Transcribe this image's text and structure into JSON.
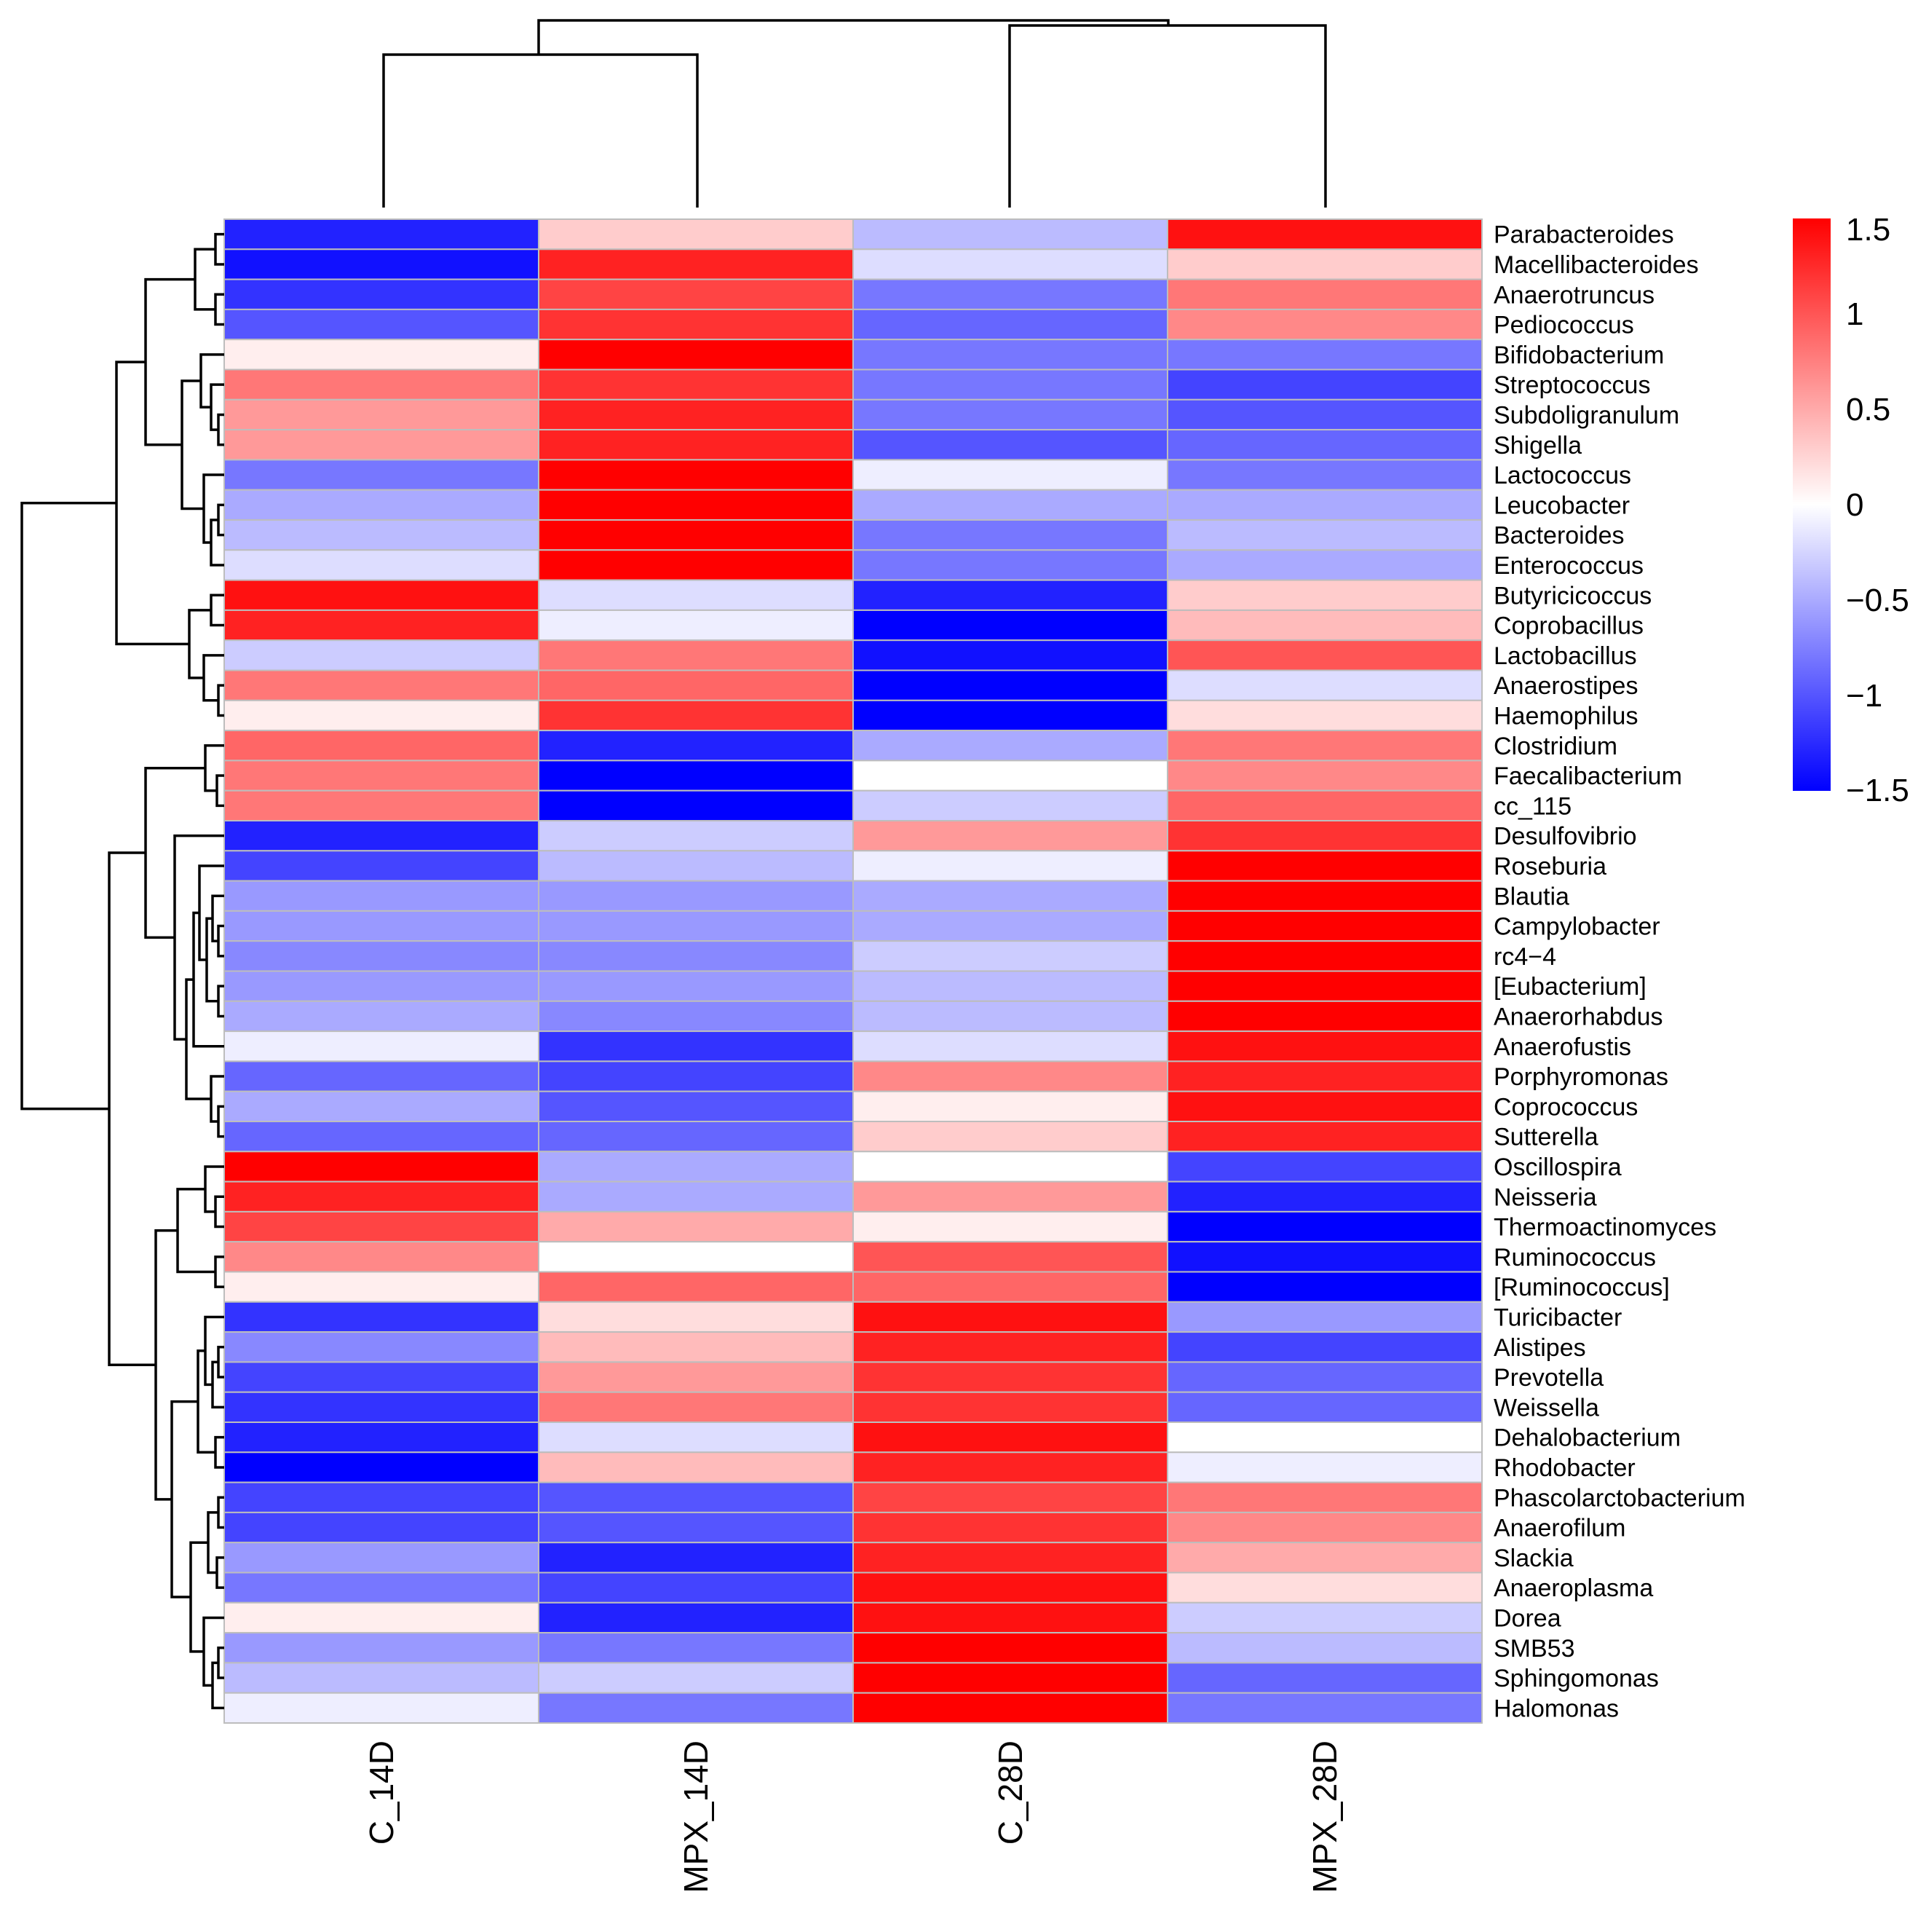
{
  "chart_data": {
    "type": "heatmap",
    "title": "",
    "columns": [
      "C_14D",
      "MPX_14D",
      "C_28D",
      "MPX_28D"
    ],
    "rows": [
      "Parabacteroides",
      "Macellibacteroides",
      "Anaerotruncus",
      "Pediococcus",
      "Bifidobacterium",
      "Streptococcus",
      "Subdoligranulum",
      "Shigella",
      "Lactococcus",
      "Leucobacter",
      "Bacteroides",
      "Enterococcus",
      "Butyricicoccus",
      "Coprobacillus",
      "Lactobacillus",
      "Anaerostipes",
      "Haemophilus",
      "Clostridium",
      "Faecalibacterium",
      "cc_115",
      "Desulfovibrio",
      "Roseburia",
      "Blautia",
      "Campylobacter",
      "rc4−4",
      "[Eubacterium]",
      "Anaerorhabdus",
      "Anaerofustis",
      "Porphyromonas",
      "Coprococcus",
      "Sutterella",
      "Oscillospira",
      "Neisseria",
      "Thermoactinomyces",
      "Ruminococcus",
      "[Ruminococcus]",
      "Turicibacter",
      "Alistipes",
      "Prevotella",
      "Weissella",
      "Dehalobacterium",
      "Rhodobacter",
      "Phascolarctobacterium",
      "Anaerofilum",
      "Slackia",
      "Anaeroplasma",
      "Dorea",
      "SMB53",
      "Sphingomonas",
      "Halomonas"
    ],
    "values": [
      [
        -1.3,
        0.3,
        -0.4,
        1.4
      ],
      [
        -1.4,
        1.3,
        -0.2,
        0.3
      ],
      [
        -1.2,
        1.1,
        -0.8,
        0.8
      ],
      [
        -1.0,
        1.2,
        -0.9,
        0.7
      ],
      [
        0.1,
        1.5,
        -0.8,
        -0.8
      ],
      [
        0.8,
        1.2,
        -0.8,
        -1.1
      ],
      [
        0.6,
        1.3,
        -0.8,
        -1.0
      ],
      [
        0.6,
        1.3,
        -1.0,
        -0.9
      ],
      [
        -0.8,
        1.5,
        -0.1,
        -0.8
      ],
      [
        -0.5,
        1.5,
        -0.5,
        -0.5
      ],
      [
        -0.4,
        1.5,
        -0.8,
        -0.4
      ],
      [
        -0.2,
        1.5,
        -0.8,
        -0.5
      ],
      [
        1.4,
        -0.2,
        -1.3,
        0.3
      ],
      [
        1.3,
        -0.1,
        -1.5,
        0.4
      ],
      [
        -0.3,
        0.8,
        -1.4,
        1.0
      ],
      [
        0.8,
        0.9,
        -1.5,
        -0.2
      ],
      [
        0.1,
        1.2,
        -1.5,
        0.2
      ],
      [
        0.9,
        -1.3,
        -0.5,
        0.8
      ],
      [
        0.8,
        -1.5,
        0.0,
        0.7
      ],
      [
        0.8,
        -1.5,
        -0.3,
        0.9
      ],
      [
        -1.3,
        -0.3,
        0.6,
        1.2
      ],
      [
        -1.1,
        -0.4,
        -0.1,
        1.5
      ],
      [
        -0.6,
        -0.6,
        -0.5,
        1.5
      ],
      [
        -0.6,
        -0.6,
        -0.5,
        1.5
      ],
      [
        -0.7,
        -0.7,
        -0.3,
        1.5
      ],
      [
        -0.6,
        -0.6,
        -0.4,
        1.5
      ],
      [
        -0.5,
        -0.7,
        -0.4,
        1.5
      ],
      [
        -0.1,
        -1.2,
        -0.2,
        1.4
      ],
      [
        -0.9,
        -1.1,
        0.7,
        1.3
      ],
      [
        -0.5,
        -1.0,
        0.1,
        1.4
      ],
      [
        -0.9,
        -0.9,
        0.3,
        1.3
      ],
      [
        1.5,
        -0.5,
        0.0,
        -1.1
      ],
      [
        1.3,
        -0.5,
        0.6,
        -1.3
      ],
      [
        1.1,
        0.5,
        0.1,
        -1.5
      ],
      [
        0.7,
        0.0,
        1.0,
        -1.4
      ],
      [
        0.1,
        0.9,
        0.9,
        -1.5
      ],
      [
        -1.2,
        0.2,
        1.4,
        -0.6
      ],
      [
        -0.7,
        0.4,
        1.3,
        -1.1
      ],
      [
        -1.1,
        0.6,
        1.2,
        -0.9
      ],
      [
        -1.2,
        0.8,
        1.2,
        -0.9
      ],
      [
        -1.3,
        -0.2,
        1.4,
        0.0
      ],
      [
        -1.5,
        0.4,
        1.3,
        -0.1
      ],
      [
        -1.1,
        -1.0,
        1.1,
        0.8
      ],
      [
        -1.1,
        -1.0,
        1.2,
        0.7
      ],
      [
        -0.6,
        -1.3,
        1.3,
        0.5
      ],
      [
        -0.8,
        -1.1,
        1.4,
        0.2
      ],
      [
        0.1,
        -1.3,
        1.4,
        -0.3
      ],
      [
        -0.6,
        -0.8,
        1.5,
        -0.4
      ],
      [
        -0.4,
        -0.3,
        1.5,
        -0.9
      ],
      [
        -0.1,
        -0.8,
        1.5,
        -0.8
      ]
    ],
    "color_scale": {
      "min": -1.5,
      "max": 1.5,
      "low_color": "#0000ff",
      "mid_color": "#ffffff",
      "high_color": "#ff0000"
    },
    "legend_ticks": [
      "1.5",
      "1",
      "0.5",
      "0",
      "−0.5",
      "−1",
      "−1.5"
    ],
    "legend_tick_values": [
      1.5,
      1,
      0.5,
      0,
      -0.5,
      -1,
      -1.5
    ]
  }
}
